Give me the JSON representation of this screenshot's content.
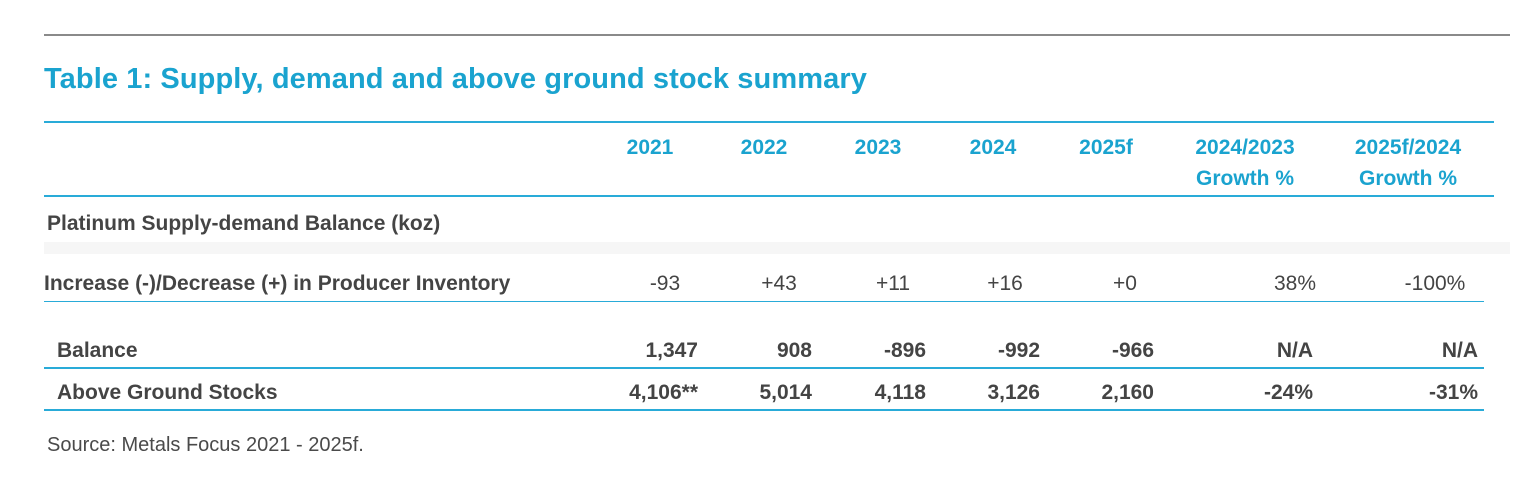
{
  "title": "Table 1: Supply, demand and above ground stock summary",
  "header": {
    "columns": [
      [
        "2021"
      ],
      [
        "2022"
      ],
      [
        "2023"
      ],
      [
        "2024"
      ],
      [
        "2025f"
      ],
      [
        "2024/2023",
        "Growth %"
      ],
      [
        "2025f/2024",
        "Growth %"
      ]
    ]
  },
  "section_label": "Platinum Supply-demand Balance (koz)",
  "rows": [
    {
      "label": "Increase (-)/Decrease (+) in Producer Inventory",
      "values": [
        "-93",
        "+43",
        "+11",
        "+16",
        "+0",
        "38%",
        "-100%"
      ]
    },
    {
      "label": "Balance",
      "values": [
        "1,347",
        "908",
        "-896",
        "-992",
        "-966",
        "N/A",
        "N/A"
      ]
    },
    {
      "label": "Above Ground Stocks",
      "values": [
        "4,106**",
        "5,014",
        "4,118",
        "3,126",
        "2,160",
        "-24%",
        "-31%"
      ]
    }
  ],
  "source": "Source: Metals Focus 2021 - 2025f.",
  "colors": {
    "accent": "#1aa3cf",
    "rule": "#29abd8",
    "text": "#444444"
  }
}
